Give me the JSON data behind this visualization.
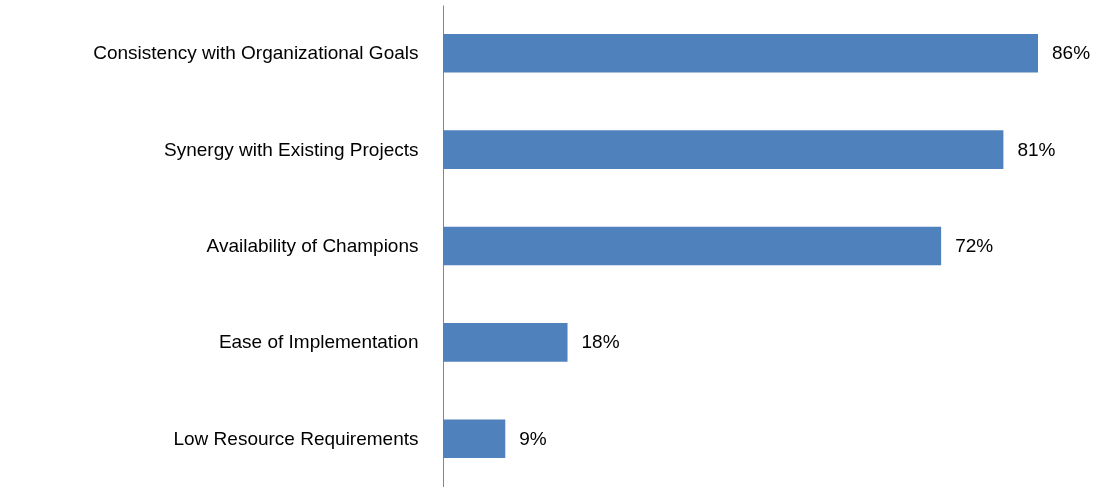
{
  "chart_data": {
    "type": "bar",
    "orientation": "horizontal",
    "categories": [
      "Consistency with Organizational Goals",
      "Synergy with Existing Projects",
      "Availability of Champions",
      "Ease of Implementation",
      "Low Resource Requirements"
    ],
    "values": [
      86,
      81,
      72,
      18,
      9
    ],
    "value_labels": [
      "86%",
      "81%",
      "72%",
      "18%",
      "9%"
    ],
    "color": "#4f81bd"
  }
}
